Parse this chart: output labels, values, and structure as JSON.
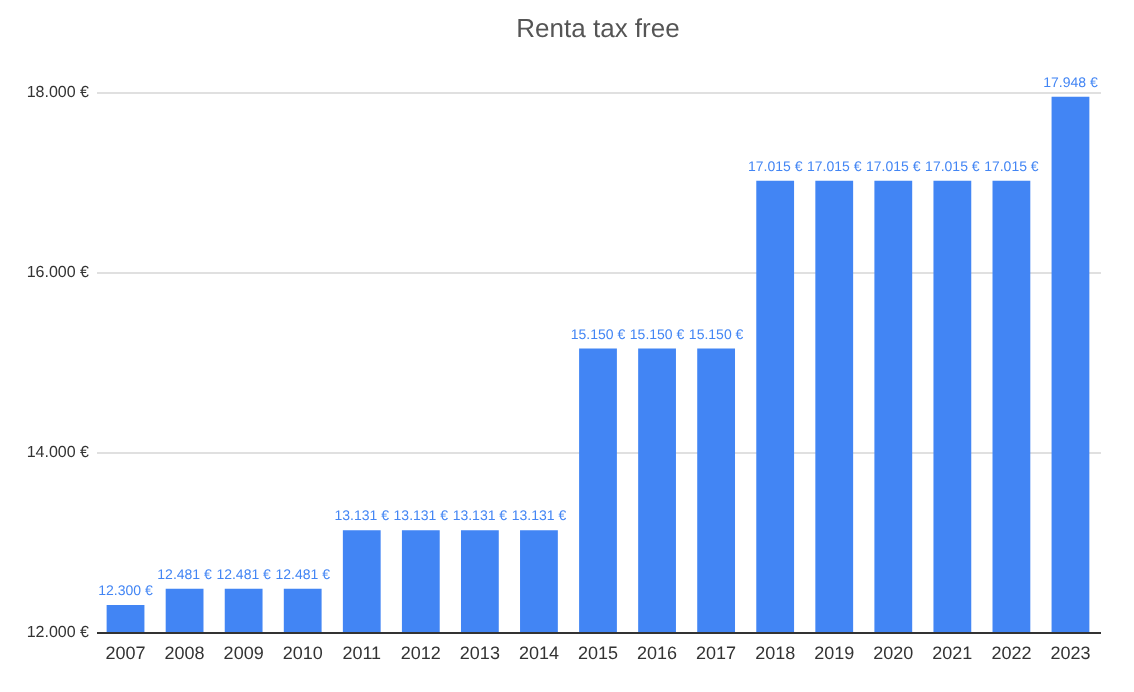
{
  "chart_data": {
    "type": "bar",
    "title": "Renta tax free",
    "categories": [
      "2007",
      "2008",
      "2009",
      "2010",
      "2011",
      "2012",
      "2013",
      "2014",
      "2015",
      "2016",
      "2017",
      "2018",
      "2019",
      "2020",
      "2021",
      "2022",
      "2023"
    ],
    "values": [
      12300,
      12481,
      12481,
      12481,
      13131,
      13131,
      13131,
      13131,
      15150,
      15150,
      15150,
      17015,
      17015,
      17015,
      17015,
      17015,
      17948
    ],
    "value_labels": [
      "12.300 €",
      "12.481 €",
      "12.481 €",
      "12.481 €",
      "13.131 €",
      "13.131 €",
      "13.131 €",
      "13.131 €",
      "15.150 €",
      "15.150 €",
      "15.150 €",
      "17.015 €",
      "17.015 €",
      "17.015 €",
      "17.015 €",
      "17.015 €",
      "17.948 €"
    ],
    "color": "#4285f4",
    "ylim": [
      12000,
      18000
    ],
    "yticks": [
      {
        "value": 12000,
        "label": "12.000 €"
      },
      {
        "value": 14000,
        "label": "14.000 €"
      },
      {
        "value": 16000,
        "label": "16.000 €"
      },
      {
        "value": 18000,
        "label": "18.000 €"
      }
    ],
    "grid": "y"
  }
}
